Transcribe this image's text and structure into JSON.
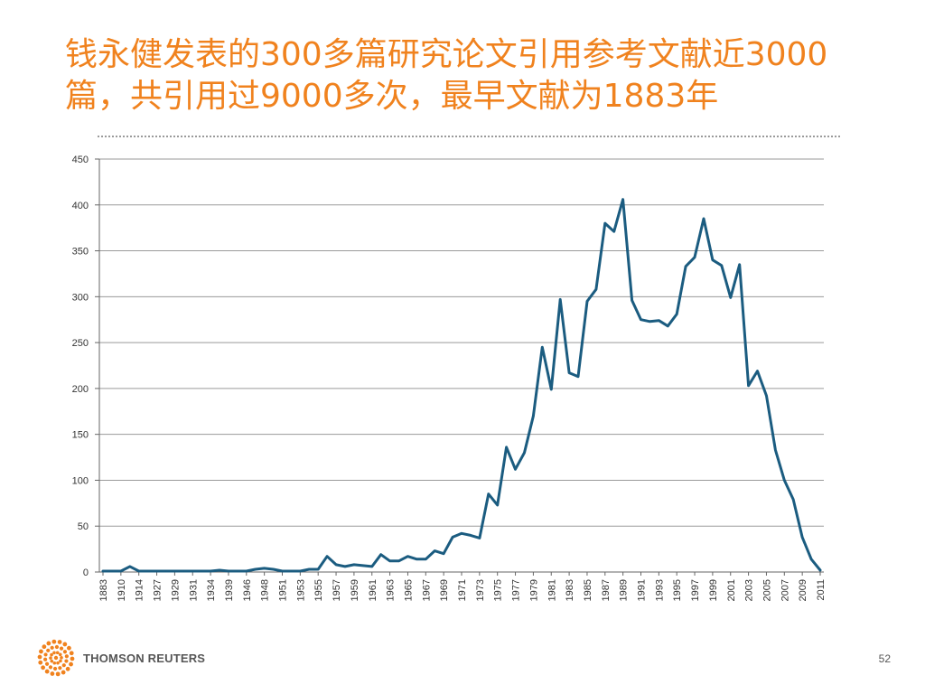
{
  "slide": {
    "title_line1": "钱永健发表的300多篇研究论文引用参考文献近3000",
    "title_line2": "篇，共引用过9000多次，最早文献为1883年",
    "page_number": "52"
  },
  "footer": {
    "logo_text": "THOMSON REUTERS",
    "logo_icon": "thomson-reuters-dot-sunburst-icon",
    "logo_color": "#f0821e"
  },
  "colors": {
    "title": "#f0821e",
    "line": "#1b5c80",
    "grid": "#9a9a9a"
  },
  "chart_data": {
    "type": "line",
    "title": "",
    "xlabel": "",
    "ylabel": "",
    "ylim": [
      0,
      450
    ],
    "yticks": [
      0,
      50,
      100,
      150,
      200,
      250,
      300,
      350,
      400,
      450
    ],
    "grid": "horizontal",
    "legend": "none",
    "x": [
      "1883",
      "1889",
      "1910",
      "1912",
      "1914",
      "1919",
      "1927",
      "1928",
      "1929",
      "1930",
      "1931",
      "1932",
      "1934",
      "1937",
      "1939",
      "1944",
      "1946",
      "1947",
      "1948",
      "1950",
      "1951",
      "1952",
      "1953",
      "1954",
      "1955",
      "1956",
      "1957",
      "1958",
      "1959",
      "1960",
      "1961",
      "1962",
      "1963",
      "1964",
      "1965",
      "1966",
      "1967",
      "1968",
      "1969",
      "1970",
      "1971",
      "1972",
      "1973",
      "1974",
      "1975",
      "1976",
      "1977",
      "1978",
      "1979",
      "1980",
      "1981",
      "1982",
      "1983",
      "1984",
      "1985",
      "1986",
      "1987",
      "1988",
      "1989",
      "1990",
      "1991",
      "1992",
      "1993",
      "1994",
      "1995",
      "1996",
      "1997",
      "1998",
      "1999",
      "2000",
      "2001",
      "2002",
      "2003",
      "2004",
      "2005",
      "2006",
      "2007",
      "2008",
      "2009",
      "2010",
      "2011"
    ],
    "xtick_labels": [
      "1883",
      "1910",
      "1914",
      "1927",
      "1929",
      "1931",
      "1934",
      "1939",
      "1946",
      "1948",
      "1951",
      "1953",
      "1955",
      "1957",
      "1959",
      "1961",
      "1963",
      "1965",
      "1967",
      "1969",
      "1971",
      "1973",
      "1975",
      "1977",
      "1979",
      "1981",
      "1983",
      "1985",
      "1987",
      "1989",
      "1991",
      "1993",
      "1995",
      "1997",
      "1999",
      "2001",
      "2003",
      "2005",
      "2007",
      "2009",
      "2011"
    ],
    "series": [
      {
        "values": [
          1,
          1,
          1,
          6,
          1,
          1,
          1,
          1,
          1,
          1,
          1,
          1,
          1,
          2,
          1,
          1,
          1,
          3,
          4,
          3,
          1,
          1,
          1,
          3,
          3,
          17,
          8,
          6,
          8,
          7,
          6,
          19,
          12,
          12,
          17,
          14,
          14,
          23,
          20,
          38,
          42,
          40,
          37,
          85,
          73,
          136,
          112,
          130,
          170,
          245,
          199,
          297,
          217,
          213,
          295,
          308,
          380,
          371,
          406,
          296,
          275,
          273,
          274,
          268,
          281,
          333,
          343,
          385,
          340,
          334,
          299,
          335,
          203,
          219,
          192,
          133,
          100,
          79,
          38,
          14,
          2
        ]
      }
    ]
  }
}
